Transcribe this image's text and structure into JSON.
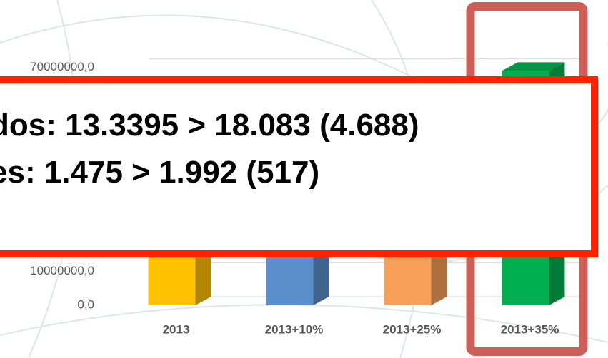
{
  "chart_data": {
    "type": "bar3d",
    "categories": [
      "2013",
      "2013+10%",
      "2013+25%",
      "2013+35%"
    ],
    "values": [
      51000000,
      56000000,
      64000000,
      69000000
    ],
    "colors": [
      "#ffc000",
      "#5b8fcb",
      "#f8a05a",
      "#00b050"
    ],
    "ylim": [
      0,
      80000000
    ],
    "yticks": [
      {
        "value": 0,
        "label": "0,0"
      },
      {
        "value": 10000000,
        "label": "10000000,0"
      },
      {
        "value": 70000000,
        "label": "70000000,0"
      }
    ],
    "grid": true,
    "highlight_category": 3,
    "annotation_lines": [
      "dos: 13.3395 > 18.083 (4.688)",
      "es: 1.475 > 1.992 (517)"
    ]
  }
}
